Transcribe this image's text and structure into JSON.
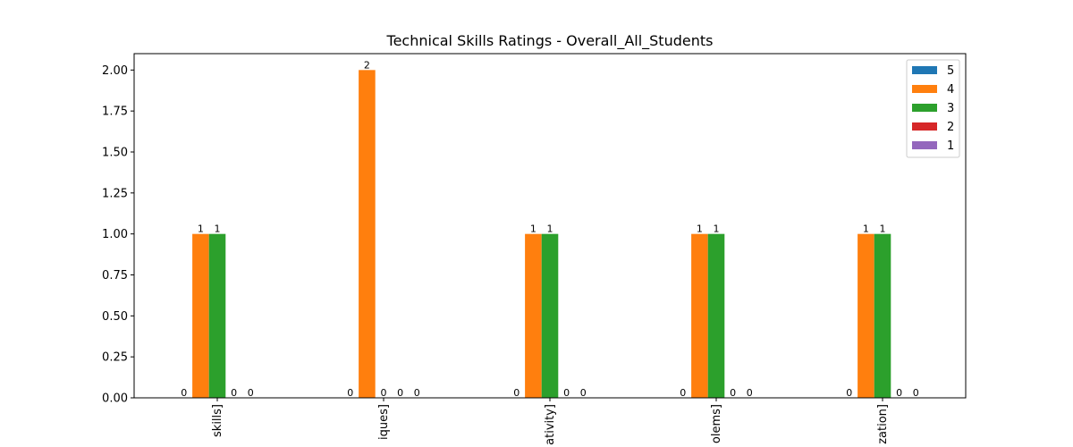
{
  "chart_data": {
    "type": "bar",
    "title": "Technical Skills Ratings - Overall_All_Students",
    "xlabel": "",
    "ylabel": "",
    "categories": [
      "skills]",
      "iques]",
      "ativity]",
      "olems]",
      "zation]"
    ],
    "series": [
      {
        "name": "5",
        "color": "#1f77b4",
        "values": [
          0,
          0,
          0,
          0,
          0
        ]
      },
      {
        "name": "4",
        "color": "#ff7f0e",
        "values": [
          1,
          2,
          1,
          1,
          1
        ]
      },
      {
        "name": "3",
        "color": "#2ca02c",
        "values": [
          1,
          0,
          1,
          1,
          1
        ]
      },
      {
        "name": "2",
        "color": "#d62728",
        "values": [
          0,
          0,
          0,
          0,
          0
        ]
      },
      {
        "name": "1",
        "color": "#9467bd",
        "values": [
          0,
          0,
          0,
          0,
          0
        ]
      }
    ],
    "ylim": [
      0,
      2.1
    ],
    "yticks": [
      0.0,
      0.25,
      0.5,
      0.75,
      1.0,
      1.25,
      1.5,
      1.75,
      2.0
    ],
    "ytick_labels": [
      "0.00",
      "0.25",
      "0.50",
      "0.75",
      "1.00",
      "1.25",
      "1.50",
      "1.75",
      "2.00"
    ],
    "grid": false,
    "legend_position": "top-right"
  }
}
